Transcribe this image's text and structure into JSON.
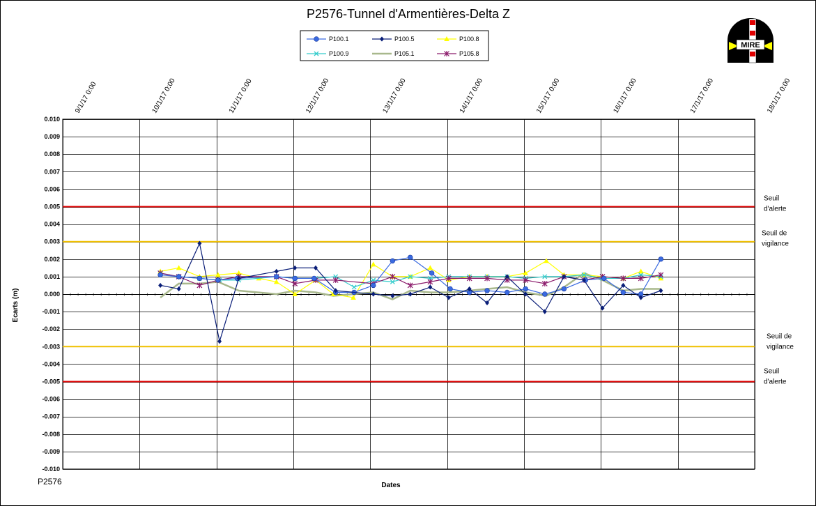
{
  "chart_data": {
    "type": "line",
    "title": "P2576-Tunnel  d'Armentières-Delta  Z",
    "xlabel": "Dates",
    "ylabel": "Ecarts (m)",
    "footer_label": "P2576",
    "logo_text": "MIRE",
    "x_tick_labels": [
      "9/1/17 0:00",
      "10/1/17 0:00",
      "11/1/17 0:00",
      "12/1/17 0:00",
      "13/1/17 0:00",
      "14/1/17 0:00",
      "15/1/17 0:00",
      "16/1/17 0:00",
      "17/1/17 0:00",
      "18/1/17 0:00"
    ],
    "x_range": [
      0,
      9
    ],
    "y_range": [
      -0.01,
      0.01
    ],
    "y_step": 0.001,
    "y_tick_labels": [
      "0.010",
      "0.009",
      "0.008",
      "0.007",
      "0.006",
      "0.005",
      "0.004",
      "0.003",
      "0.002",
      "0.001",
      "0.000",
      "-0.001",
      "-0.002",
      "-0.003",
      "-0.004",
      "-0.005",
      "-0.006",
      "-0.007",
      "-0.008",
      "-0.009",
      "-0.010"
    ],
    "grid": true,
    "legend_position": "top-center",
    "thresholds": [
      {
        "value": 0.005,
        "color": "#e00000",
        "label_lines": [
          "Seuil",
          "d'alerte"
        ]
      },
      {
        "value": 0.003,
        "color": "#f0c000",
        "label_lines": [
          "Seuil de",
          "vigilance"
        ]
      },
      {
        "value": -0.003,
        "color": "#f0c000",
        "label_lines": [
          "Seuil de",
          "vigilance"
        ]
      },
      {
        "value": -0.005,
        "color": "#e00000",
        "label_lines": [
          "Seuil",
          "d'alerte"
        ]
      }
    ],
    "series": [
      {
        "name": "P100.1",
        "color": "#3a6ae0",
        "marker": "circle",
        "points": [
          [
            1.27,
            0.0011
          ],
          [
            1.51,
            0.001
          ],
          [
            1.78,
            0.0009
          ],
          [
            2.02,
            0.0008
          ],
          [
            2.27,
            0.0009
          ],
          [
            2.78,
            0.001
          ],
          [
            3.02,
            0.0009
          ],
          [
            3.27,
            0.0009
          ],
          [
            3.55,
            0.0001
          ],
          [
            3.79,
            0.0001
          ],
          [
            4.04,
            0.0005
          ],
          [
            4.29,
            0.0019
          ],
          [
            4.52,
            0.0021
          ],
          [
            4.8,
            0.0012
          ],
          [
            5.04,
            0.0003
          ],
          [
            5.29,
            0.0001
          ],
          [
            5.52,
            0.0002
          ],
          [
            5.78,
            0.0001
          ],
          [
            6.02,
            0.0003
          ],
          [
            6.27,
            0.0
          ],
          [
            6.52,
            0.0003
          ],
          [
            6.8,
            0.0008
          ],
          [
            7.04,
            0.0009
          ],
          [
            7.29,
            0.0001
          ],
          [
            7.52,
            0.0
          ],
          [
            7.78,
            0.002
          ]
        ]
      },
      {
        "name": "P100.5",
        "color": "#0a1e78",
        "marker": "diamond",
        "points": [
          [
            1.27,
            0.0005
          ],
          [
            1.51,
            0.0003
          ],
          [
            1.78,
            0.0029
          ],
          [
            2.04,
            -0.0027
          ],
          [
            2.29,
            0.0009
          ],
          [
            2.78,
            0.0013
          ],
          [
            3.02,
            0.0015
          ],
          [
            3.29,
            0.0015
          ],
          [
            3.55,
            0.0002
          ],
          [
            4.04,
            0.0
          ],
          [
            4.29,
            -0.0001
          ],
          [
            4.52,
            0.0
          ],
          [
            4.78,
            0.0004
          ],
          [
            5.02,
            -0.0002
          ],
          [
            5.29,
            0.0003
          ],
          [
            5.52,
            -0.0005
          ],
          [
            5.78,
            0.001
          ],
          [
            6.02,
            0.0
          ],
          [
            6.27,
            -0.001
          ],
          [
            6.52,
            0.001
          ],
          [
            6.78,
            0.0008
          ],
          [
            7.02,
            -0.0008
          ],
          [
            7.29,
            0.0005
          ],
          [
            7.52,
            -0.0002
          ],
          [
            7.78,
            0.0002
          ]
        ]
      },
      {
        "name": "P100.8",
        "color": "#ffff00",
        "marker": "triangle",
        "points": [
          [
            1.27,
            0.0013
          ],
          [
            1.51,
            0.0015
          ],
          [
            1.78,
            0.001
          ],
          [
            2.02,
            0.0011
          ],
          [
            2.29,
            0.0012
          ],
          [
            2.55,
            0.0009
          ],
          [
            2.78,
            0.0007
          ],
          [
            3.02,
            0.0
          ],
          [
            3.29,
            0.0008
          ],
          [
            3.52,
            0.0
          ],
          [
            3.78,
            -0.0002
          ],
          [
            4.04,
            0.0017
          ],
          [
            4.29,
            0.001
          ],
          [
            4.52,
            0.001
          ],
          [
            4.78,
            0.0015
          ],
          [
            5.02,
            0.0008
          ],
          [
            5.29,
            0.001
          ],
          [
            5.52,
            0.001
          ],
          [
            5.78,
            0.001
          ],
          [
            6.02,
            0.0012
          ],
          [
            6.29,
            0.0019
          ],
          [
            6.52,
            0.0011
          ],
          [
            6.78,
            0.0011
          ],
          [
            7.02,
            0.001
          ],
          [
            7.29,
            0.0009
          ],
          [
            7.52,
            0.0013
          ],
          [
            7.78,
            0.0009
          ]
        ]
      },
      {
        "name": "P100.9",
        "color": "#33cccc",
        "marker": "x",
        "points": [
          [
            1.27,
            0.0012
          ],
          [
            1.51,
            0.001
          ],
          [
            1.78,
            0.0009
          ],
          [
            2.04,
            0.0008
          ],
          [
            2.29,
            0.0008
          ],
          [
            2.78,
            0.001
          ],
          [
            3.02,
            0.0009
          ],
          [
            3.29,
            0.0009
          ],
          [
            3.55,
            0.001
          ],
          [
            3.79,
            0.0004
          ],
          [
            4.04,
            0.0008
          ],
          [
            4.29,
            0.0007
          ],
          [
            4.52,
            0.001
          ],
          [
            4.78,
            0.0009
          ],
          [
            5.02,
            0.001
          ],
          [
            5.29,
            0.001
          ],
          [
            5.52,
            0.001
          ],
          [
            5.78,
            0.001
          ],
          [
            6.02,
            0.0009
          ],
          [
            6.27,
            0.001
          ],
          [
            6.52,
            0.001
          ],
          [
            6.78,
            0.0011
          ],
          [
            7.02,
            0.0009
          ],
          [
            7.29,
            0.0009
          ],
          [
            7.52,
            0.0011
          ],
          [
            7.78,
            0.001
          ]
        ]
      },
      {
        "name": "P105.1",
        "color": "#a8b88c",
        "marker": "none",
        "points": [
          [
            1.27,
            -0.0002
          ],
          [
            1.51,
            0.0006
          ],
          [
            1.78,
            0.0006
          ],
          [
            2.02,
            0.0007
          ],
          [
            2.29,
            0.0002
          ],
          [
            2.78,
            0.0
          ],
          [
            3.02,
            0.0002
          ],
          [
            3.29,
            0.0001
          ],
          [
            3.52,
            -0.0001
          ],
          [
            3.78,
            0.0
          ],
          [
            4.04,
            0.0001
          ],
          [
            4.29,
            -0.0003
          ],
          [
            4.52,
            0.0002
          ],
          [
            4.78,
            0.0001
          ],
          [
            5.02,
            0.0001
          ],
          [
            5.29,
            0.0002
          ],
          [
            5.52,
            0.0003
          ],
          [
            5.78,
            0.0004
          ],
          [
            6.02,
            0.0001
          ],
          [
            6.29,
            -0.0001
          ],
          [
            6.52,
            0.0004
          ],
          [
            6.78,
            0.0012
          ],
          [
            7.02,
            0.0008
          ],
          [
            7.29,
            0.0002
          ],
          [
            7.52,
            0.0003
          ],
          [
            7.78,
            0.0003
          ]
        ]
      },
      {
        "name": "P105.8",
        "color": "#8b1a6b",
        "marker": "star",
        "points": [
          [
            1.27,
            0.0012
          ],
          [
            1.51,
            0.001
          ],
          [
            1.78,
            0.0005
          ],
          [
            2.02,
            0.0008
          ],
          [
            2.29,
            0.001
          ],
          [
            2.78,
            0.001
          ],
          [
            3.02,
            0.0006
          ],
          [
            3.29,
            0.0008
          ],
          [
            3.55,
            0.0008
          ],
          [
            4.04,
            0.0006
          ],
          [
            4.29,
            0.001
          ],
          [
            4.52,
            0.0005
          ],
          [
            4.78,
            0.0007
          ],
          [
            5.02,
            0.0009
          ],
          [
            5.29,
            0.0009
          ],
          [
            5.52,
            0.0009
          ],
          [
            5.78,
            0.0008
          ],
          [
            6.02,
            0.0008
          ],
          [
            6.27,
            0.0006
          ],
          [
            6.52,
            0.001
          ],
          [
            6.78,
            0.0008
          ],
          [
            7.02,
            0.001
          ],
          [
            7.29,
            0.0009
          ],
          [
            7.52,
            0.0009
          ],
          [
            7.78,
            0.0011
          ]
        ]
      }
    ]
  }
}
